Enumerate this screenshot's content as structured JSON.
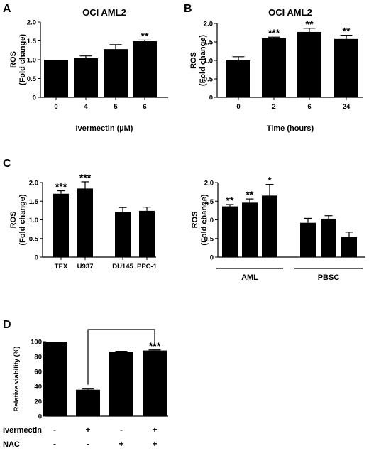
{
  "panel_letters": [
    "A",
    "B",
    "C",
    "D"
  ],
  "chart_data": [
    {
      "type": "bar",
      "panel": "A",
      "title": "OCI AML2",
      "xlabel": "Ivermectin  (µM)",
      "ylabel": [
        "ROS",
        "(Fold change)"
      ],
      "categories": [
        "0",
        "4",
        "5",
        "6"
      ],
      "values": [
        1.0,
        1.04,
        1.28,
        1.49
      ],
      "errors": [
        0.0,
        0.06,
        0.12,
        0.03
      ],
      "significance": [
        "",
        "",
        "",
        "**"
      ],
      "ylim": [
        0,
        2.0
      ],
      "yticks": [
        "0",
        "0.5",
        "1.0",
        "1.5",
        "2.0"
      ],
      "grid": false,
      "bar_color": "#000000"
    },
    {
      "type": "bar",
      "panel": "B",
      "title": "OCI AML2",
      "xlabel": "Time (hours)",
      "ylabel": [
        "ROS",
        "(Fold change)"
      ],
      "categories": [
        "0",
        "2",
        "6",
        "24"
      ],
      "values": [
        1.0,
        1.6,
        1.77,
        1.58
      ],
      "errors": [
        0.1,
        0.03,
        0.1,
        0.1
      ],
      "significance": [
        "",
        "***",
        "**",
        "**"
      ],
      "ylim": [
        0,
        2.0
      ],
      "yticks": [
        "0",
        "0.5",
        "1.0",
        "1.5",
        "2.0"
      ],
      "grid": false,
      "bar_color": "#000000"
    },
    {
      "type": "bar",
      "panel": "C",
      "title": "",
      "xlabel": "",
      "ylabel": [
        "ROS",
        "(Fold change)"
      ],
      "categories": [
        "TEX",
        "U937",
        "DU145",
        "PPC-1"
      ],
      "values": [
        1.7,
        1.84,
        1.21,
        1.24
      ],
      "errors": [
        0.08,
        0.18,
        0.12,
        0.1
      ],
      "significance": [
        "***",
        "***",
        "",
        ""
      ],
      "ylim": [
        0,
        2.0
      ],
      "yticks": [
        "0",
        "0.5",
        "1.0",
        "1.5",
        "2.0"
      ],
      "grid": false,
      "bar_color": "#000000"
    },
    {
      "type": "bar",
      "panel": "C-right",
      "title": "",
      "xlabel": "",
      "ylabel": [
        "ROS",
        "(Fold change)"
      ],
      "values": [
        1.36,
        1.46,
        1.65,
        0.92,
        1.03,
        0.54
      ],
      "errors": [
        0.05,
        0.1,
        0.3,
        0.12,
        0.08,
        0.13
      ],
      "significance": [
        "**",
        "**",
        "*",
        "",
        "",
        ""
      ],
      "groups": [
        "AML",
        "PBSC"
      ],
      "ylim": [
        0,
        2.0
      ],
      "yticks": [
        "0",
        "0.5",
        "1.0",
        "1.5",
        "2.0"
      ],
      "grid": false,
      "bar_color": "#000000"
    },
    {
      "type": "bar",
      "panel": "D",
      "title": "",
      "xlabel": "",
      "ylabel": [
        "Relative viability (%)"
      ],
      "values": [
        100,
        35.5,
        86.5,
        88
      ],
      "errors": [
        0,
        1,
        0.5,
        0.8
      ],
      "significance": [
        "",
        "",
        "",
        "***"
      ],
      "comparison_bracket": [
        2,
        4
      ],
      "ylim": [
        0,
        100
      ],
      "yticks": [
        "0",
        "20",
        "40",
        "60",
        "80",
        "100"
      ],
      "grid": false,
      "bar_color": "#000000",
      "treatment_rows": [
        {
          "label": "Ivermectin",
          "marks": [
            "-",
            "+",
            "-",
            "+"
          ]
        },
        {
          "label": "NAC",
          "marks": [
            "-",
            "-",
            "+",
            "+"
          ]
        }
      ]
    }
  ]
}
